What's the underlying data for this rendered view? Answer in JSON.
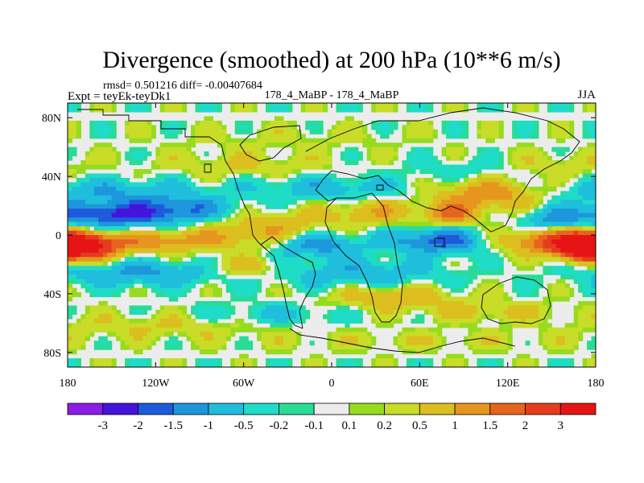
{
  "chart_data": {
    "type": "heatmap",
    "title": "Divergence (smoothed) at 200 hPa (10**6 m/s)",
    "stats_text": "rmsd= 0.501216 diff= -0.00407684",
    "experiment_label": "Expt = teyEk-teyDk1",
    "case_label": "178_4_MaBP - 178_4_MaBP",
    "season_label": "JJA",
    "x_ticks": [
      {
        "lon": -180,
        "label": "180"
      },
      {
        "lon": -120,
        "label": "120W"
      },
      {
        "lon": -60,
        "label": "60W"
      },
      {
        "lon": 0,
        "label": "0"
      },
      {
        "lon": 60,
        "label": "60E"
      },
      {
        "lon": 120,
        "label": "120E"
      },
      {
        "lon": 180,
        "label": "180"
      }
    ],
    "y_ticks": [
      {
        "lat": 80,
        "label": "80N"
      },
      {
        "lat": 40,
        "label": "40N"
      },
      {
        "lat": 0,
        "label": "0"
      },
      {
        "lat": -40,
        "label": "40S"
      },
      {
        "lat": -80,
        "label": "80S"
      }
    ],
    "xlim": [
      -180,
      180
    ],
    "ylim": [
      -90,
      90
    ],
    "colorbar": {
      "levels": [
        "-3",
        "-2",
        "-1.5",
        "-1",
        "-0.5",
        "-0.2",
        "-0.1",
        "0.1",
        "0.2",
        "0.5",
        "1",
        "1.5",
        "2",
        "3"
      ],
      "colors": [
        "#8a1ce6",
        "#4414dc",
        "#1e5adc",
        "#1e96dc",
        "#1ebedc",
        "#1edcc8",
        "#28dc96",
        "#ececec",
        "#96dc1e",
        "#c8dc28",
        "#dcbe1e",
        "#e6961e",
        "#e6641e",
        "#e63c1e",
        "#e61414"
      ]
    },
    "approx_bands": [
      {
        "lat": -80,
        "note": "high-latitude south: mostly weak positive/negative small patches"
      },
      {
        "lat": -60,
        "note": "green/yellow weak positive band"
      },
      {
        "lat": -40,
        "note": "mixed weak values"
      },
      {
        "lat": -20,
        "note": "cyan/blue negative band with yellow/orange patches"
      },
      {
        "lat": -8,
        "note": "strong positive (orange/red) band near 180 and 160E-180"
      },
      {
        "lat": 10,
        "note": "blue negative belt in east Pacific and Indian Ocean"
      },
      {
        "lat": 25,
        "note": "cyan/green weak negative"
      },
      {
        "lat": 40,
        "note": "green/yellow weak positive"
      },
      {
        "lat": 65,
        "note": "mostly near zero with green patches"
      }
    ]
  }
}
